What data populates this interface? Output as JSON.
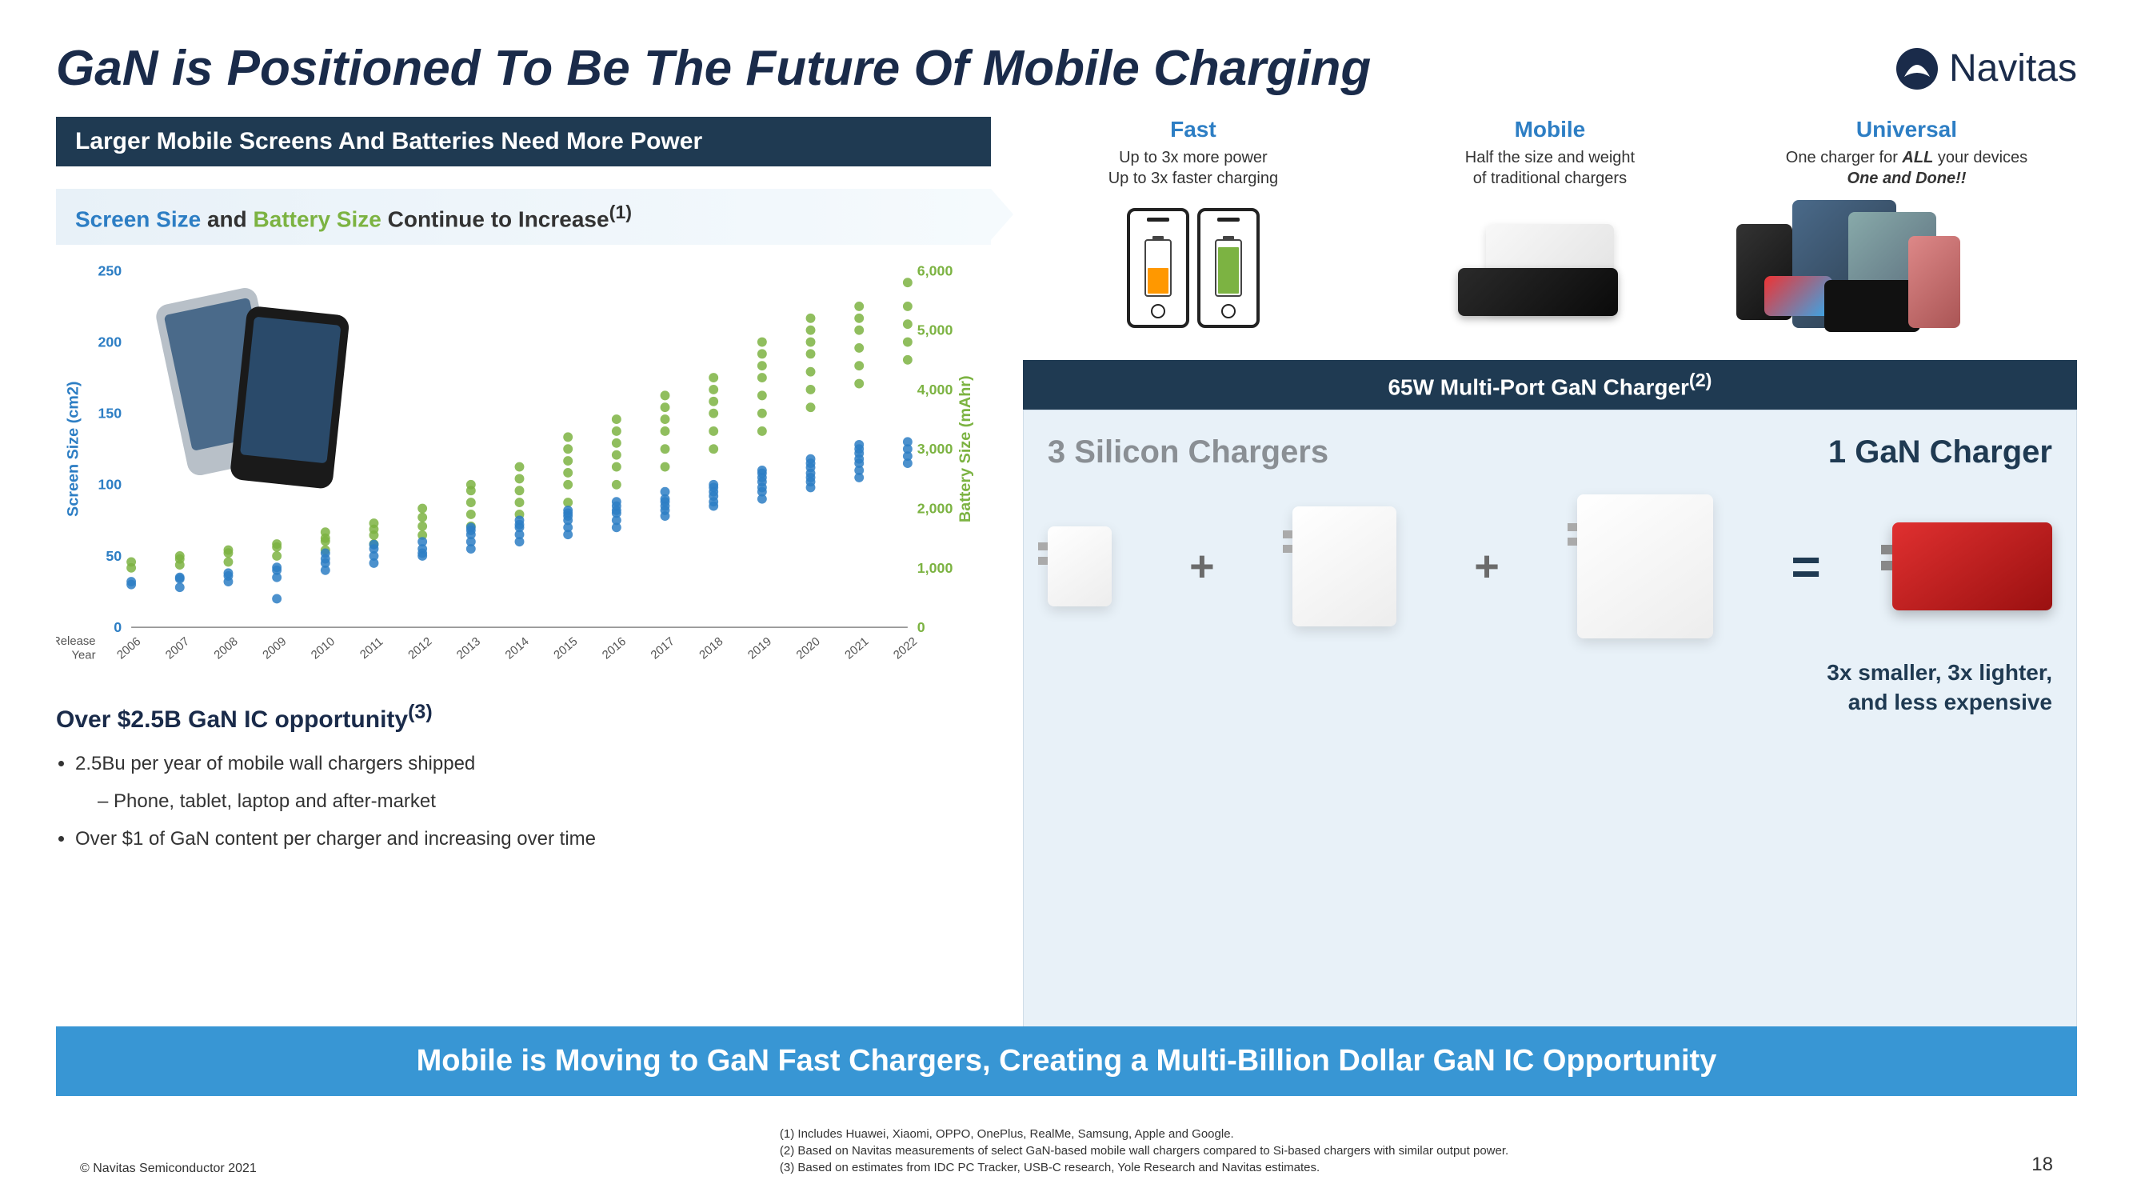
{
  "title": "GaN is Positioned To Be The Future Of Mobile Charging",
  "logo_text": "Navitas",
  "left": {
    "banner": "Larger Mobile Screens And Batteries Need More Power",
    "sub_banner_pre": "Screen Size",
    "sub_banner_mid": " and ",
    "sub_banner_green": "Battery Size",
    "sub_banner_post": " Continue to Increase",
    "sub_banner_sup": "(1)",
    "chart": {
      "type": "scatter_dual_axis",
      "x_label": "Release Year",
      "x_ticks": [
        "2006",
        "2007",
        "2008",
        "2009",
        "2010",
        "2011",
        "2012",
        "2013",
        "2014",
        "2015",
        "2016",
        "2017",
        "2018",
        "2019",
        "2020",
        "2021",
        "2022"
      ],
      "y_left_label": "Screen Size (cm2)",
      "y_left_ticks": [
        0,
        50,
        100,
        150,
        200,
        250
      ],
      "y_left_range": [
        0,
        250
      ],
      "y_left_color": "#2d7ec4",
      "y_right_label": "Battery Size (mAhr)",
      "y_right_ticks": [
        0,
        1000,
        2000,
        3000,
        4000,
        5000,
        6000
      ],
      "y_right_range": [
        0,
        6000
      ],
      "y_right_color": "#7cb342",
      "marker_size": 6,
      "background_color": "#ffffff",
      "screen_points": [
        [
          2006,
          30
        ],
        [
          2006,
          32
        ],
        [
          2007,
          28
        ],
        [
          2007,
          35
        ],
        [
          2007,
          34
        ],
        [
          2008,
          32
        ],
        [
          2008,
          36
        ],
        [
          2008,
          38
        ],
        [
          2009,
          35
        ],
        [
          2009,
          40
        ],
        [
          2009,
          42
        ],
        [
          2009,
          20
        ],
        [
          2010,
          40
        ],
        [
          2010,
          45
        ],
        [
          2010,
          48
        ],
        [
          2010,
          52
        ],
        [
          2011,
          45
        ],
        [
          2011,
          50
        ],
        [
          2011,
          55
        ],
        [
          2011,
          58
        ],
        [
          2012,
          50
        ],
        [
          2012,
          55
        ],
        [
          2012,
          60
        ],
        [
          2012,
          52
        ],
        [
          2013,
          55
        ],
        [
          2013,
          60
        ],
        [
          2013,
          65
        ],
        [
          2013,
          68
        ],
        [
          2013,
          70
        ],
        [
          2014,
          60
        ],
        [
          2014,
          65
        ],
        [
          2014,
          70
        ],
        [
          2014,
          72
        ],
        [
          2014,
          75
        ],
        [
          2015,
          65
        ],
        [
          2015,
          70
        ],
        [
          2015,
          75
        ],
        [
          2015,
          78
        ],
        [
          2015,
          80
        ],
        [
          2015,
          82
        ],
        [
          2016,
          70
        ],
        [
          2016,
          75
        ],
        [
          2016,
          80
        ],
        [
          2016,
          82
        ],
        [
          2016,
          85
        ],
        [
          2016,
          88
        ],
        [
          2017,
          78
        ],
        [
          2017,
          82
        ],
        [
          2017,
          85
        ],
        [
          2017,
          88
        ],
        [
          2017,
          90
        ],
        [
          2017,
          95
        ],
        [
          2018,
          85
        ],
        [
          2018,
          88
        ],
        [
          2018,
          92
        ],
        [
          2018,
          95
        ],
        [
          2018,
          98
        ],
        [
          2018,
          100
        ],
        [
          2019,
          90
        ],
        [
          2019,
          95
        ],
        [
          2019,
          98
        ],
        [
          2019,
          102
        ],
        [
          2019,
          105
        ],
        [
          2019,
          108
        ],
        [
          2019,
          110
        ],
        [
          2020,
          98
        ],
        [
          2020,
          102
        ],
        [
          2020,
          105
        ],
        [
          2020,
          108
        ],
        [
          2020,
          112
        ],
        [
          2020,
          115
        ],
        [
          2020,
          118
        ],
        [
          2021,
          105
        ],
        [
          2021,
          110
        ],
        [
          2021,
          115
        ],
        [
          2021,
          118
        ],
        [
          2021,
          122
        ],
        [
          2021,
          125
        ],
        [
          2021,
          128
        ],
        [
          2022,
          115
        ],
        [
          2022,
          120
        ],
        [
          2022,
          125
        ],
        [
          2022,
          130
        ]
      ],
      "battery_points": [
        [
          2006,
          1000
        ],
        [
          2006,
          1100
        ],
        [
          2007,
          1050
        ],
        [
          2007,
          1150
        ],
        [
          2007,
          1200
        ],
        [
          2008,
          1100
        ],
        [
          2008,
          1250
        ],
        [
          2008,
          1300
        ],
        [
          2009,
          1200
        ],
        [
          2009,
          1350
        ],
        [
          2009,
          1400
        ],
        [
          2010,
          1300
        ],
        [
          2010,
          1450
        ],
        [
          2010,
          1500
        ],
        [
          2010,
          1600
        ],
        [
          2011,
          1400
        ],
        [
          2011,
          1550
        ],
        [
          2011,
          1650
        ],
        [
          2011,
          1750
        ],
        [
          2012,
          1550
        ],
        [
          2012,
          1700
        ],
        [
          2012,
          1850
        ],
        [
          2012,
          2000
        ],
        [
          2013,
          1700
        ],
        [
          2013,
          1900
        ],
        [
          2013,
          2100
        ],
        [
          2013,
          2300
        ],
        [
          2013,
          2400
        ],
        [
          2014,
          1900
        ],
        [
          2014,
          2100
        ],
        [
          2014,
          2300
        ],
        [
          2014,
          2500
        ],
        [
          2014,
          2700
        ],
        [
          2015,
          2100
        ],
        [
          2015,
          2400
        ],
        [
          2015,
          2600
        ],
        [
          2015,
          2800
        ],
        [
          2015,
          3000
        ],
        [
          2015,
          3200
        ],
        [
          2016,
          2400
        ],
        [
          2016,
          2700
        ],
        [
          2016,
          2900
        ],
        [
          2016,
          3100
        ],
        [
          2016,
          3300
        ],
        [
          2016,
          3500
        ],
        [
          2017,
          2700
        ],
        [
          2017,
          3000
        ],
        [
          2017,
          3300
        ],
        [
          2017,
          3500
        ],
        [
          2017,
          3700
        ],
        [
          2017,
          3900
        ],
        [
          2018,
          3000
        ],
        [
          2018,
          3300
        ],
        [
          2018,
          3600
        ],
        [
          2018,
          3800
        ],
        [
          2018,
          4000
        ],
        [
          2018,
          4200
        ],
        [
          2019,
          3300
        ],
        [
          2019,
          3600
        ],
        [
          2019,
          3900
        ],
        [
          2019,
          4200
        ],
        [
          2019,
          4400
        ],
        [
          2019,
          4600
        ],
        [
          2019,
          4800
        ],
        [
          2020,
          3700
        ],
        [
          2020,
          4000
        ],
        [
          2020,
          4300
        ],
        [
          2020,
          4600
        ],
        [
          2020,
          4800
        ],
        [
          2020,
          5000
        ],
        [
          2020,
          5200
        ],
        [
          2021,
          4100
        ],
        [
          2021,
          4400
        ],
        [
          2021,
          4700
        ],
        [
          2021,
          5000
        ],
        [
          2021,
          5200
        ],
        [
          2021,
          5400
        ],
        [
          2022,
          4500
        ],
        [
          2022,
          4800
        ],
        [
          2022,
          5100
        ],
        [
          2022,
          5400
        ],
        [
          2022,
          5800
        ]
      ]
    },
    "opportunity_title": "Over $2.5B GaN IC opportunity",
    "opportunity_sup": "(3)",
    "bullets": [
      "2.5Bu per year of mobile wall chargers shipped",
      "Over $1 of GaN content per charger and increasing over time"
    ],
    "sub_bullet": "Phone, tablet, laptop and after-market"
  },
  "features": {
    "fast": {
      "title": "Fast",
      "line1": "Up to 3x more power",
      "line2": "Up to 3x faster charging",
      "batt1_color": "#ff9800",
      "batt1_pct": 50,
      "batt2_color": "#7cb342",
      "batt2_pct": 90
    },
    "mobile": {
      "title": "Mobile",
      "line1": "Half the size and weight",
      "line2": "of traditional chargers"
    },
    "universal": {
      "title": "Universal",
      "line1": "One charger for ALL your devices",
      "line2": "One and Done!!"
    }
  },
  "comparison": {
    "banner": "65W Multi-Port GaN Charger",
    "banner_sup": "(2)",
    "silicon_title": "3 Silicon Chargers",
    "gan_title": "1 GaN Charger",
    "si_sizes": [
      [
        80,
        100
      ],
      [
        130,
        150
      ],
      [
        170,
        180
      ]
    ],
    "gan_color": "#c21818",
    "tagline1": "3x smaller, 3x lighter,",
    "tagline2": "and less expensive"
  },
  "bottom_banner": "Mobile is Moving to GaN Fast Chargers, Creating a Multi-Billion Dollar GaN IC Opportunity",
  "footer": {
    "copyright": "© Navitas Semiconductor 2021",
    "notes": [
      "(1)    Includes Huawei, Xiaomi, OPPO, OnePlus, RealMe, Samsung, Apple and Google.",
      "(2)    Based on Navitas measurements of select GaN-based mobile wall chargers compared to Si-based chargers with similar output power.",
      "(3)    Based on estimates from IDC PC Tracker, USB-C research, Yole Research and Navitas estimates."
    ],
    "page": "18"
  }
}
